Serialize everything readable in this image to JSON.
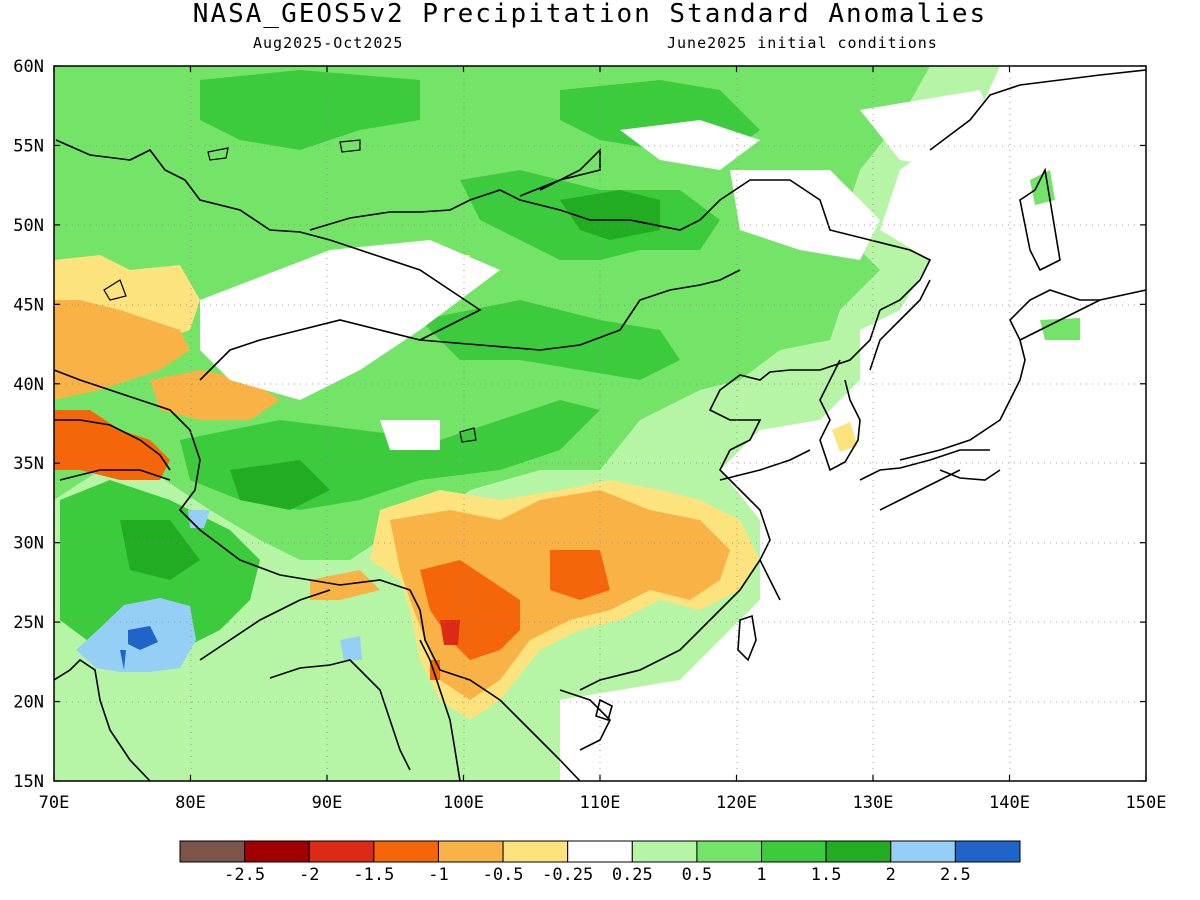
{
  "title": "NASA_GEOS5v2 Precipitation Standard Anomalies",
  "subtitle_left": "Aug2025-Oct2025",
  "subtitle_right": "June2025 initial conditions",
  "lon_ticks": [
    "70E",
    "80E",
    "90E",
    "100E",
    "110E",
    "120E",
    "130E",
    "140E",
    "150E"
  ],
  "lat_ticks": [
    "60N",
    "55N",
    "50N",
    "45N",
    "40N",
    "35N",
    "30N",
    "25N",
    "20N",
    "15N"
  ],
  "colorbar": {
    "colors": [
      "#7b5548",
      "#a00000",
      "#dc2a14",
      "#f5660a",
      "#f8b245",
      "#fce37e",
      "#ffffff",
      "#b6f4a6",
      "#74e468",
      "#3ccb3c",
      "#22ac22",
      "#96cff5",
      "#1f64c8"
    ],
    "labels": [
      "-2.5",
      "-2",
      "-1.5",
      "-1",
      "-0.5",
      "-0.25",
      "0.25",
      "0.5",
      "1",
      "1.5",
      "2",
      "2.5"
    ]
  },
  "regions": [
    {
      "name": "west-china-mongolia-green",
      "color": "#74e468"
    },
    {
      "name": "southeast-china-anomaly",
      "color": "#f8b245"
    },
    {
      "name": "yunnan-strong-anomaly",
      "color": "#f5660a"
    },
    {
      "name": "india-wet-anomaly",
      "color": "#96cff5"
    },
    {
      "name": "kazakhstan-dry-anomaly",
      "color": "#f8b245"
    }
  ]
}
